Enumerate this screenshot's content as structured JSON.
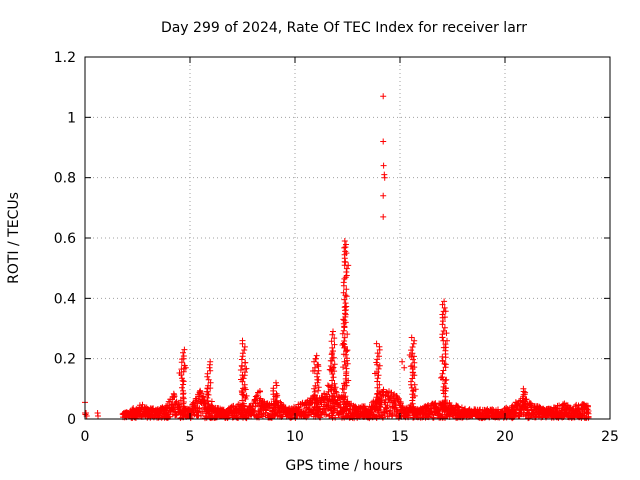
{
  "chart_data": {
    "type": "scatter",
    "title": "Day 299 of 2024, Rate Of TEC Index for receiver larr",
    "xlabel": "GPS time / hours",
    "ylabel": "ROTI / TECUs",
    "xlim": [
      0,
      25
    ],
    "ylim": [
      0,
      1.2
    ],
    "xticks": [
      0,
      5,
      10,
      15,
      20,
      25
    ],
    "yticks": [
      0,
      0.2,
      0.4,
      0.6,
      0.8,
      1,
      1.2
    ],
    "xtick_labels": [
      "0",
      "5",
      "10",
      "15",
      "20",
      "25"
    ],
    "ytick_labels": [
      "0",
      "0.2",
      "0.4",
      "0.6",
      "0.8",
      "1",
      "1.2"
    ],
    "grid": true,
    "legend": "none",
    "marker": "plus",
    "color": "#ff0000",
    "series": [
      {
        "baseline_band": [
          [
            0.0,
            0.02
          ],
          [
            0.05,
            0.05
          ],
          [
            0.08,
            0.02
          ],
          [
            0.6,
            0.02
          ],
          [
            0.6,
            0.01
          ],
          [
            1.8,
            0.02
          ],
          [
            2.0,
            0.02
          ],
          [
            2.2,
            0.03
          ],
          [
            2.5,
            0.04
          ],
          [
            2.8,
            0.05
          ],
          [
            3.0,
            0.03
          ],
          [
            3.2,
            0.04
          ],
          [
            3.5,
            0.03
          ],
          [
            3.8,
            0.04
          ],
          [
            4.0,
            0.06
          ],
          [
            4.2,
            0.09
          ],
          [
            4.4,
            0.05
          ],
          [
            5.0,
            0.03
          ],
          [
            5.3,
            0.07
          ],
          [
            5.5,
            0.1
          ],
          [
            5.7,
            0.06
          ],
          [
            6.2,
            0.04
          ],
          [
            6.5,
            0.03
          ],
          [
            6.8,
            0.03
          ],
          [
            7.0,
            0.04
          ],
          [
            7.3,
            0.05
          ],
          [
            7.8,
            0.04
          ],
          [
            8.0,
            0.05
          ],
          [
            8.3,
            0.1
          ],
          [
            8.5,
            0.06
          ],
          [
            8.8,
            0.05
          ],
          [
            9.2,
            0.06
          ],
          [
            9.5,
            0.04
          ],
          [
            9.8,
            0.03
          ],
          [
            10.0,
            0.04
          ],
          [
            10.3,
            0.05
          ],
          [
            10.6,
            0.06
          ],
          [
            10.8,
            0.08
          ],
          [
            11.3,
            0.07
          ],
          [
            11.6,
            0.12
          ],
          [
            12.0,
            0.09
          ],
          [
            12.6,
            0.05
          ],
          [
            13.0,
            0.04
          ],
          [
            13.4,
            0.04
          ],
          [
            13.8,
            0.06
          ],
          [
            14.2,
            0.1
          ],
          [
            14.5,
            0.09
          ],
          [
            14.8,
            0.08
          ],
          [
            15.2,
            0.04
          ],
          [
            15.8,
            0.03
          ],
          [
            16.2,
            0.04
          ],
          [
            16.5,
            0.05
          ],
          [
            16.8,
            0.05
          ],
          [
            17.4,
            0.05
          ],
          [
            17.8,
            0.04
          ],
          [
            18.2,
            0.03
          ],
          [
            18.6,
            0.03
          ],
          [
            19.0,
            0.03
          ],
          [
            19.5,
            0.03
          ],
          [
            19.9,
            0.03
          ],
          [
            20.3,
            0.04
          ],
          [
            20.6,
            0.06
          ],
          [
            20.9,
            0.07
          ],
          [
            21.2,
            0.05
          ],
          [
            21.6,
            0.04
          ],
          [
            22.0,
            0.03
          ],
          [
            22.4,
            0.04
          ],
          [
            22.8,
            0.05
          ],
          [
            23.2,
            0.04
          ],
          [
            23.6,
            0.05
          ],
          [
            24.0,
            0.04
          ]
        ],
        "spikes": [
          {
            "x": 4.65,
            "peak": 0.23
          },
          {
            "x": 5.9,
            "peak": 0.19
          },
          {
            "x": 7.55,
            "peak": 0.26
          },
          {
            "x": 9.05,
            "peak": 0.12
          },
          {
            "x": 11.0,
            "peak": 0.21
          },
          {
            "x": 11.8,
            "peak": 0.29
          },
          {
            "x": 12.4,
            "peak": 0.59
          },
          {
            "x": 13.95,
            "peak": 0.25
          },
          {
            "x": 15.6,
            "peak": 0.27
          },
          {
            "x": 17.1,
            "peak": 0.39
          },
          {
            "x": 20.9,
            "peak": 0.1
          }
        ],
        "outliers": [
          [
            14.2,
            1.07
          ],
          [
            14.2,
            0.92
          ],
          [
            14.22,
            0.84
          ],
          [
            14.25,
            0.81
          ],
          [
            14.27,
            0.8
          ],
          [
            14.2,
            0.74
          ],
          [
            14.2,
            0.67
          ],
          [
            12.4,
            0.57
          ],
          [
            12.45,
            0.55
          ],
          [
            12.4,
            0.52
          ],
          [
            12.42,
            0.47
          ],
          [
            12.4,
            0.41
          ],
          [
            12.38,
            0.36
          ],
          [
            12.3,
            0.33
          ],
          [
            15.2,
            0.17
          ],
          [
            15.1,
            0.19
          ],
          [
            4.7,
            0.2
          ],
          [
            4.8,
            0.17
          ],
          [
            11.0,
            0.2
          ],
          [
            11.1,
            0.18
          ]
        ]
      }
    ]
  }
}
